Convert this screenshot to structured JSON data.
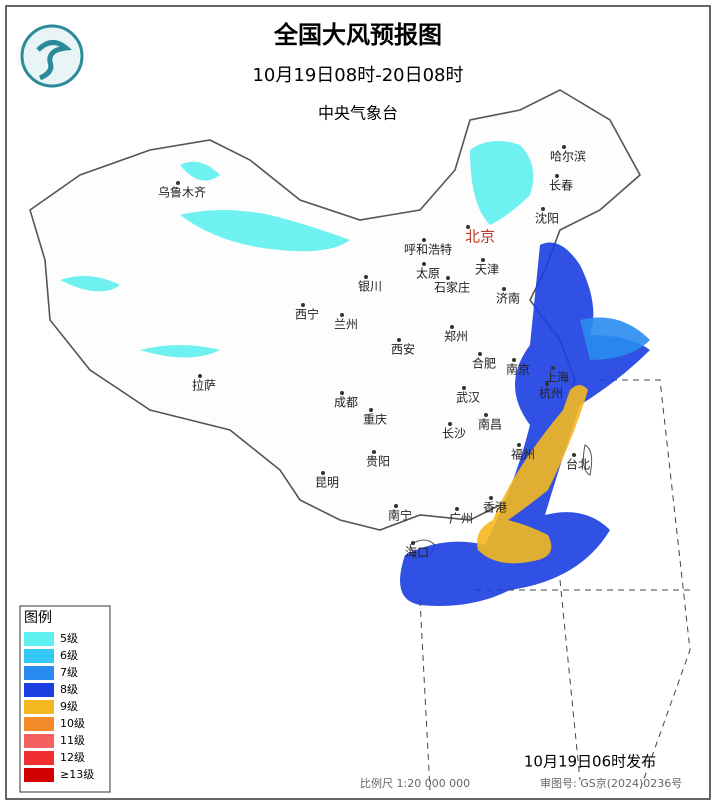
{
  "header": {
    "title": "全国大风预报图",
    "period": "10月19日08时-20日08时",
    "agency": "中央气象台"
  },
  "cities": [
    {
      "label": "哈尔滨"
    },
    {
      "label": "长春"
    },
    {
      "label": "沈阳"
    },
    {
      "label": "北京",
      "color": "#c0392b"
    },
    {
      "label": "乌鲁木齐"
    },
    {
      "label": "呼和浩特"
    },
    {
      "label": "天津"
    },
    {
      "label": "太原"
    },
    {
      "label": "石家庄"
    },
    {
      "label": "银川"
    },
    {
      "label": "济南"
    },
    {
      "label": "西宁"
    },
    {
      "label": "兰州"
    },
    {
      "label": "郑州"
    },
    {
      "label": "西安"
    },
    {
      "label": "合肥"
    },
    {
      "label": "南京"
    },
    {
      "label": "上海"
    },
    {
      "label": "拉萨"
    },
    {
      "label": "成都"
    },
    {
      "label": "武汉"
    },
    {
      "label": "杭州"
    },
    {
      "label": "重庆"
    },
    {
      "label": "南昌"
    },
    {
      "label": "长沙"
    },
    {
      "label": "福州"
    },
    {
      "label": "台北"
    },
    {
      "label": "贵阳"
    },
    {
      "label": "昆明"
    },
    {
      "label": "广州"
    },
    {
      "label": "香港"
    },
    {
      "label": "南宁"
    },
    {
      "label": "海口"
    }
  ],
  "legend": {
    "title": "图例",
    "items": [
      {
        "label": "5级",
        "color": "#5ff0f0"
      },
      {
        "label": "6级",
        "color": "#35c8f5"
      },
      {
        "label": "7级",
        "color": "#2a8cf0"
      },
      {
        "label": "8级",
        "color": "#1a3ee0"
      },
      {
        "label": "9级",
        "color": "#f5b820"
      },
      {
        "label": "10级",
        "color": "#f58a2a"
      },
      {
        "label": "11级",
        "color": "#f56060"
      },
      {
        "label": "12级",
        "color": "#f03030"
      },
      {
        "label": "≥13级",
        "color": "#d00000"
      }
    ]
  },
  "footer": {
    "issued": "10月19日06时发布",
    "scale": "比例尺 1:20 000 000",
    "approval": "审图号: GS京(2024)0236号"
  }
}
